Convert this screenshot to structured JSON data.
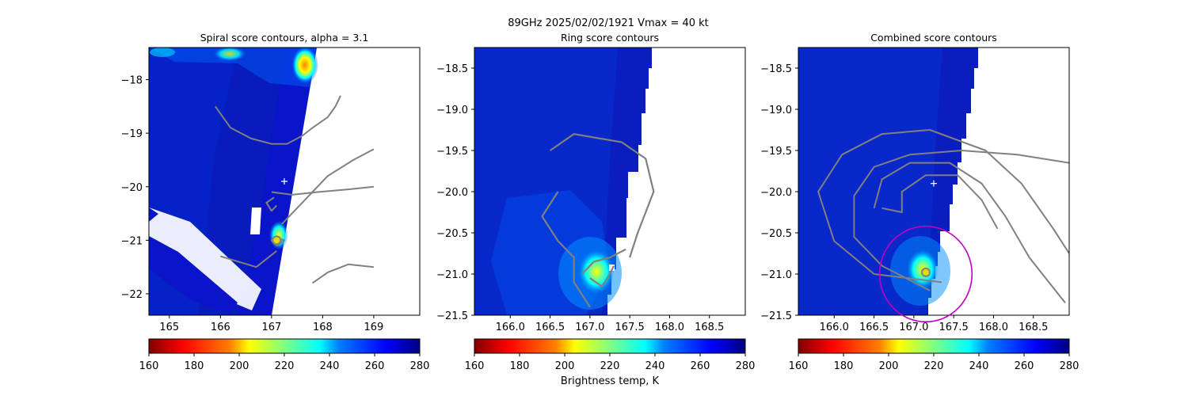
{
  "figure": {
    "suptitle": "89GHz  2025/02/02/1921    Vmax = 40 kt",
    "colorbar_label": "Brightness temp, K",
    "colormap": [
      "#800000",
      "#ff0000",
      "#ff8000",
      "#ffff00",
      "#80ff80",
      "#00ffff",
      "#0080ff",
      "#0000ff",
      "#000080"
    ]
  },
  "chart_data": [
    {
      "type": "heatmap",
      "title": "Spiral score contours, alpha =  3.1",
      "xlim": [
        164.6,
        169.9
      ],
      "ylim": [
        -22.4,
        -17.4
      ],
      "xticks": [
        165,
        166,
        167,
        168,
        169
      ],
      "yticks": [
        -18,
        -19,
        -20,
        -21,
        -22
      ],
      "colorbar": {
        "range": [
          160,
          280
        ],
        "ticks": [
          160,
          180,
          200,
          220,
          240,
          260,
          280
        ]
      },
      "center_marker": {
        "x": 167.25,
        "y": -19.9
      },
      "fitted_center": {
        "x": 167.1,
        "y": -21.0
      },
      "contours": [
        [
          [
            165.9,
            -18.5
          ],
          [
            166.2,
            -18.9
          ],
          [
            166.6,
            -19.1
          ],
          [
            167.0,
            -19.2
          ],
          [
            167.3,
            -19.2
          ],
          [
            167.6,
            -19.05
          ],
          [
            167.8,
            -18.9
          ]
        ],
        [
          [
            167.8,
            -18.9
          ],
          [
            168.1,
            -18.7
          ],
          [
            168.25,
            -18.5
          ],
          [
            168.35,
            -18.3
          ]
        ],
        [
          [
            166.0,
            -21.3
          ],
          [
            166.7,
            -21.5
          ],
          [
            167.1,
            -21.2
          ]
        ],
        [
          [
            167.0,
            -20.1
          ],
          [
            167.4,
            -20.15
          ],
          [
            167.9,
            -20.1
          ],
          [
            168.5,
            -20.05
          ],
          [
            169.0,
            -20.0
          ]
        ],
        [
          [
            167.05,
            -20.2
          ],
          [
            166.9,
            -20.3
          ],
          [
            167.0,
            -20.45
          ],
          [
            167.1,
            -20.35
          ]
        ],
        [
          [
            167.2,
            -20.7
          ],
          [
            167.6,
            -20.3
          ],
          [
            168.1,
            -19.8
          ],
          [
            168.6,
            -19.5
          ],
          [
            169.0,
            -19.3
          ]
        ],
        [
          [
            167.8,
            -21.8
          ],
          [
            168.1,
            -21.6
          ],
          [
            168.5,
            -21.45
          ],
          [
            169.0,
            -21.5
          ]
        ],
        [
          [
            167.1,
            -20.95
          ],
          [
            167.25,
            -21.0
          ],
          [
            167.1,
            -21.1
          ],
          [
            167.0,
            -21.0
          ],
          [
            167.1,
            -20.95
          ]
        ]
      ]
    },
    {
      "type": "heatmap",
      "title": "Ring score contours",
      "xlim": [
        165.55,
        168.95
      ],
      "ylim": [
        -21.5,
        -18.25
      ],
      "xticks": [
        166.0,
        166.5,
        167.0,
        167.5,
        168.0,
        168.5
      ],
      "yticks": [
        -18.5,
        -19.0,
        -19.5,
        -20.0,
        -20.5,
        -21.0,
        -21.5
      ],
      "colorbar": {
        "range": [
          160,
          280
        ],
        "ticks": [
          160,
          180,
          200,
          220,
          240,
          260,
          280
        ]
      },
      "contours": [
        [
          [
            166.5,
            -19.5
          ],
          [
            166.8,
            -19.3
          ],
          [
            167.1,
            -19.35
          ],
          [
            167.4,
            -19.4
          ],
          [
            167.7,
            -19.6
          ],
          [
            167.8,
            -20.0
          ],
          [
            167.6,
            -20.5
          ],
          [
            167.5,
            -20.8
          ]
        ],
        [
          [
            166.6,
            -20.0
          ],
          [
            166.4,
            -20.3
          ],
          [
            166.6,
            -20.6
          ],
          [
            166.8,
            -20.8
          ],
          [
            166.8,
            -21.1
          ],
          [
            167.0,
            -21.4
          ]
        ],
        [
          [
            166.9,
            -21.0
          ],
          [
            167.05,
            -20.85
          ],
          [
            167.25,
            -20.8
          ],
          [
            167.45,
            -20.7
          ]
        ],
        [
          [
            167.0,
            -21.05
          ],
          [
            167.15,
            -21.15
          ],
          [
            167.25,
            -21.0
          ],
          [
            167.3,
            -20.9
          ]
        ]
      ]
    },
    {
      "type": "heatmap",
      "title": "Combined score contours",
      "xlim": [
        165.55,
        168.95
      ],
      "ylim": [
        -21.5,
        -18.25
      ],
      "xticks": [
        166.0,
        166.5,
        167.0,
        167.5,
        168.0,
        168.5
      ],
      "yticks": [
        -18.5,
        -19.0,
        -19.5,
        -20.0,
        -20.5,
        -21.0,
        -21.5
      ],
      "colorbar": {
        "range": [
          160,
          280
        ],
        "ticks": [
          160,
          180,
          200,
          220,
          240,
          260,
          280
        ]
      },
      "center_marker": {
        "x": 167.25,
        "y": -19.9
      },
      "fitted_center": {
        "x": 167.15,
        "y": -20.98
      },
      "contours": [
        [
          [
            167.2,
            -21.2
          ],
          [
            166.6,
            -20.9
          ],
          [
            166.25,
            -20.55
          ],
          [
            166.25,
            -20.05
          ],
          [
            166.5,
            -19.7
          ],
          [
            166.95,
            -19.55
          ],
          [
            167.6,
            -19.5
          ],
          [
            168.3,
            -19.55
          ],
          [
            168.95,
            -19.65
          ]
        ],
        [
          [
            167.35,
            -21.1
          ],
          [
            166.5,
            -21.0
          ],
          [
            166.0,
            -20.6
          ],
          [
            165.8,
            -20.0
          ],
          [
            166.1,
            -19.55
          ],
          [
            166.6,
            -19.3
          ],
          [
            167.2,
            -19.25
          ],
          [
            167.9,
            -19.5
          ],
          [
            168.35,
            -19.9
          ],
          [
            168.75,
            -20.45
          ],
          [
            168.95,
            -20.75
          ]
        ],
        [
          [
            166.5,
            -20.2
          ],
          [
            166.6,
            -19.85
          ],
          [
            166.95,
            -19.65
          ],
          [
            167.45,
            -19.65
          ],
          [
            167.85,
            -19.9
          ],
          [
            168.15,
            -20.3
          ],
          [
            168.45,
            -20.8
          ],
          [
            168.9,
            -21.35
          ]
        ],
        [
          [
            166.6,
            -20.2
          ],
          [
            166.85,
            -20.25
          ],
          [
            166.85,
            -20.0
          ],
          [
            167.15,
            -19.8
          ],
          [
            167.55,
            -19.8
          ],
          [
            167.85,
            -20.1
          ],
          [
            168.05,
            -20.45
          ]
        ]
      ],
      "radius_circle": {
        "cx": 167.15,
        "cy": -21.0,
        "r": 0.58
      }
    }
  ]
}
